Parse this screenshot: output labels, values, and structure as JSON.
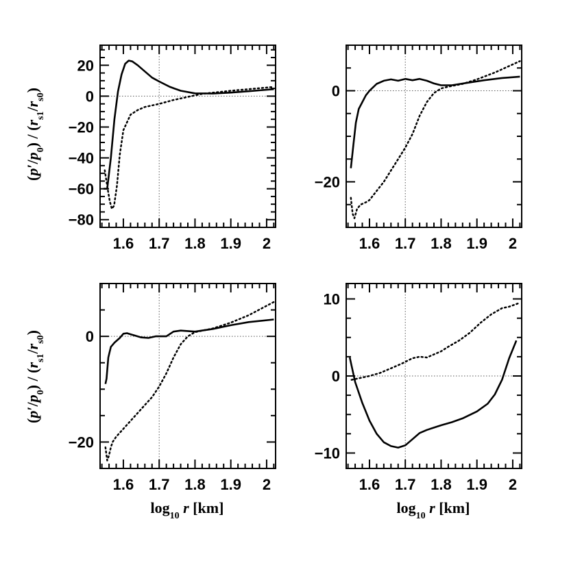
{
  "figure": {
    "ylabel": {
      "open": "(",
      "p": "p",
      "prime": "′",
      "slash1": "/",
      "p0": "p",
      "p0_sub": "0",
      "close": ")",
      "sep": " / ",
      "open2": "(",
      "rs1": "r",
      "rs1_sub": "s1",
      "slash2": "/",
      "rs0": "r",
      "rs0_sub": "s0",
      "close2": ")"
    },
    "xlabel": {
      "log": "log",
      "log_sub": "10",
      "r": "r",
      "unit": "[km]"
    }
  },
  "chart_data": [
    {
      "type": "line",
      "panel": "top-left",
      "xlim": [
        1.535,
        2.025
      ],
      "ylim": [
        -85,
        33
      ],
      "xticks": [
        1.6,
        1.7,
        1.8,
        1.9,
        2.0
      ],
      "xtick_labels": [
        "1.6",
        "1.7",
        "1.8",
        "1.9",
        "2"
      ],
      "yticks": [
        20,
        0,
        -20,
        -40,
        -60,
        -80
      ],
      "ytick_labels": [
        "20",
        "0",
        "−20",
        "−40",
        "−60",
        "−80"
      ],
      "reference_lines": {
        "y": 0,
        "x": 1.7
      },
      "series": [
        {
          "name": "solid",
          "style": "solid",
          "x": [
            1.545,
            1.555,
            1.565,
            1.575,
            1.585,
            1.595,
            1.605,
            1.615,
            1.625,
            1.64,
            1.66,
            1.68,
            1.7,
            1.73,
            1.76,
            1.8,
            1.85,
            1.9,
            1.95,
            2.02
          ],
          "y": [
            -60,
            -60,
            -40,
            -15,
            3,
            14,
            21,
            23,
            22.5,
            20,
            16,
            12,
            9.5,
            6,
            3.5,
            1.8,
            1.7,
            2.3,
            3.2,
            4.5
          ]
        },
        {
          "name": "dotted",
          "style": "dotted",
          "x": [
            1.548,
            1.556,
            1.562,
            1.568,
            1.574,
            1.582,
            1.59,
            1.6,
            1.62,
            1.64,
            1.66,
            1.7,
            1.74,
            1.78,
            1.82,
            1.86,
            1.9,
            1.95,
            2.02
          ],
          "y": [
            -48,
            -60,
            -68,
            -73,
            -71,
            -58,
            -38,
            -22,
            -12,
            -9,
            -7,
            -5,
            -2.5,
            -0.5,
            1.5,
            2.5,
            3.5,
            4.5,
            6
          ]
        }
      ]
    },
    {
      "type": "line",
      "panel": "top-right",
      "xlim": [
        1.535,
        2.025
      ],
      "ylim": [
        -30,
        10
      ],
      "xticks": [
        1.6,
        1.7,
        1.8,
        1.9,
        2.0
      ],
      "xtick_labels": [
        "1.6",
        "1.7",
        "1.8",
        "1.9",
        "2"
      ],
      "yticks": [
        0,
        -20
      ],
      "ytick_labels": [
        "0",
        "−20"
      ],
      "reference_lines": {
        "y": 0,
        "x": 1.7
      },
      "series": [
        {
          "name": "solid",
          "style": "solid",
          "x": [
            1.548,
            1.555,
            1.562,
            1.57,
            1.58,
            1.59,
            1.6,
            1.62,
            1.64,
            1.66,
            1.68,
            1.7,
            1.72,
            1.74,
            1.76,
            1.78,
            1.8,
            1.83,
            1.87,
            1.92,
            1.97,
            2.02
          ],
          "y": [
            -17,
            -12,
            -7,
            -4,
            -2.5,
            -1,
            0,
            1.5,
            2.2,
            2.5,
            2.2,
            2.6,
            2.3,
            2.6,
            2.2,
            1.6,
            1.2,
            1.2,
            1.7,
            2.3,
            2.8,
            3.1
          ]
        },
        {
          "name": "dotted",
          "style": "dotted",
          "x": [
            1.548,
            1.553,
            1.558,
            1.565,
            1.575,
            1.59,
            1.6,
            1.62,
            1.64,
            1.66,
            1.68,
            1.7,
            1.72,
            1.74,
            1.76,
            1.78,
            1.8,
            1.82,
            1.86,
            1.9,
            1.95,
            2.02
          ],
          "y": [
            -23.5,
            -27,
            -28,
            -26,
            -25,
            -24.5,
            -24,
            -22,
            -20,
            -17.5,
            -15,
            -12.5,
            -9.5,
            -5.5,
            -2.5,
            -0.5,
            0.5,
            0.9,
            1.5,
            2.5,
            4,
            6.5
          ]
        }
      ]
    },
    {
      "type": "line",
      "panel": "bottom-left",
      "xlim": [
        1.535,
        2.025
      ],
      "ylim": [
        -25,
        10
      ],
      "xticks": [
        1.6,
        1.7,
        1.8,
        1.9,
        2.0
      ],
      "xtick_labels": [
        "1.6",
        "1.7",
        "1.8",
        "1.9",
        "2"
      ],
      "yticks": [
        0,
        -20
      ],
      "ytick_labels": [
        "0",
        "−20"
      ],
      "reference_lines": {
        "y": 0,
        "x": 1.7
      },
      "series": [
        {
          "name": "solid",
          "style": "solid",
          "x": [
            1.55,
            1.553,
            1.558,
            1.565,
            1.575,
            1.59,
            1.6,
            1.61,
            1.62,
            1.63,
            1.65,
            1.67,
            1.69,
            1.7,
            1.72,
            1.74,
            1.76,
            1.78,
            1.8,
            1.85,
            1.9,
            1.95,
            2.02
          ],
          "y": [
            -9,
            -8,
            -4,
            -2,
            -1.2,
            -0.3,
            0.5,
            0.6,
            0.4,
            0.2,
            -0.2,
            -0.3,
            0,
            0,
            0,
            0.9,
            1.1,
            1.0,
            0.9,
            1.4,
            2.1,
            2.7,
            3.2
          ]
        },
        {
          "name": "dotted",
          "style": "dotted",
          "x": [
            1.55,
            1.555,
            1.56,
            1.565,
            1.57,
            1.58,
            1.6,
            1.62,
            1.64,
            1.66,
            1.68,
            1.7,
            1.72,
            1.74,
            1.76,
            1.78,
            1.8,
            1.85,
            1.9,
            1.95,
            2.02
          ],
          "y": [
            -21,
            -23.5,
            -22.5,
            -21,
            -20,
            -19,
            -17.5,
            -16,
            -14.5,
            -13,
            -11.5,
            -9.5,
            -7,
            -4,
            -1.5,
            0,
            0.8,
            1.5,
            2.6,
            4,
            6.5
          ]
        }
      ]
    },
    {
      "type": "line",
      "panel": "bottom-right",
      "xlim": [
        1.535,
        2.025
      ],
      "ylim": [
        -12,
        12
      ],
      "xticks": [
        1.6,
        1.7,
        1.8,
        1.9,
        2.0
      ],
      "xtick_labels": [
        "1.6",
        "1.7",
        "1.8",
        "1.9",
        "2"
      ],
      "yticks": [
        10,
        0,
        -10
      ],
      "ytick_labels": [
        "10",
        "0",
        "−10"
      ],
      "reference_lines": {
        "y": 0,
        "x": 1.7
      },
      "series": [
        {
          "name": "solid",
          "style": "solid",
          "x": [
            1.545,
            1.56,
            1.58,
            1.6,
            1.62,
            1.64,
            1.66,
            1.68,
            1.7,
            1.72,
            1.74,
            1.76,
            1.78,
            1.8,
            1.83,
            1.86,
            1.9,
            1.93,
            1.95,
            1.97,
            1.99,
            2.01
          ],
          "y": [
            2.4,
            -0.8,
            -3.5,
            -5.8,
            -7.5,
            -8.6,
            -9.1,
            -9.3,
            -9.0,
            -8.2,
            -7.4,
            -7.0,
            -6.7,
            -6.4,
            -6.0,
            -5.5,
            -4.6,
            -3.6,
            -2.4,
            -0.5,
            2.3,
            4.6
          ]
        },
        {
          "name": "dotted",
          "style": "dotted",
          "x": [
            1.55,
            1.57,
            1.6,
            1.63,
            1.66,
            1.69,
            1.72,
            1.74,
            1.76,
            1.78,
            1.8,
            1.82,
            1.85,
            1.88,
            1.91,
            1.94,
            1.97,
            1.99,
            2.02
          ],
          "y": [
            -0.5,
            -0.3,
            0.0,
            0.4,
            1.0,
            1.6,
            2.3,
            2.5,
            2.4,
            2.8,
            3.2,
            3.8,
            4.6,
            5.6,
            6.9,
            8.0,
            8.8,
            9.0,
            9.5
          ]
        }
      ]
    }
  ]
}
